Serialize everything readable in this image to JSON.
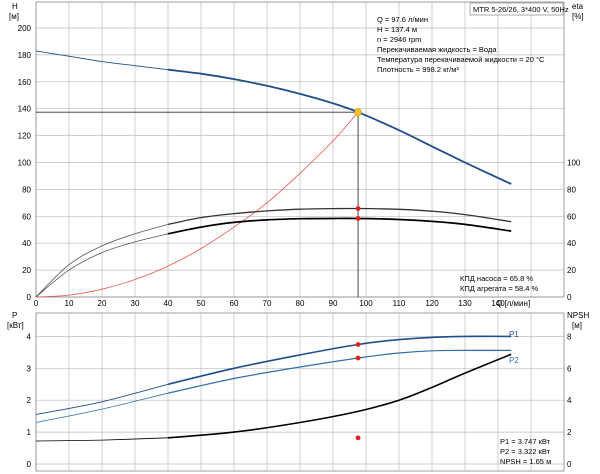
{
  "chart_data": [
    {
      "type": "line",
      "panel": "top",
      "y_left_label_1": "H",
      "y_left_label_2": "[м]",
      "y_right_label_1": "eta",
      "y_right_label_2": "[%]",
      "x_label": "Q [л/мин]",
      "header_box": "MTR 5-26/26, 3*400 V, 50Hz",
      "xlim": [
        0,
        150
      ],
      "ylim_left": [
        0,
        220
      ],
      "ylim_right_eta": [
        0,
        100
      ],
      "x_ticks": [
        "0",
        "10",
        "20",
        "30",
        "40",
        "50",
        "60",
        "70",
        "80",
        "90",
        "100",
        "110",
        "120",
        "130",
        "140"
      ],
      "y_left_ticks": [
        "0",
        "20",
        "40",
        "60",
        "80",
        "100",
        "120",
        "140",
        "160",
        "180",
        "200"
      ],
      "y_right_ticks": [
        "0",
        "20",
        "40",
        "60",
        "80",
        "100"
      ],
      "grid": true,
      "info_lines": [
        "Q = 97.6 л/мин",
        "H = 137.4 м",
        "n = 2946 rpm",
        "Перекачиваемая жидкость = Вода",
        "Температура перекачиваемой жидкости = 20 °C",
        "Плотность = 998.2 кг/м³"
      ],
      "efficiency_lines": [
        "КПД насоса = 65.8 %",
        "КПД агрегата = 58.4 %"
      ],
      "duty_point": {
        "q": 97.6,
        "h": 137.4
      },
      "series": [
        {
          "key": "H",
          "color": "#1f4e8c",
          "x": [
            0,
            10,
            20,
            30,
            40,
            50,
            60,
            70,
            80,
            90,
            97.6,
            110,
            120,
            130,
            144
          ],
          "y": [
            183,
            179,
            175,
            172,
            169,
            166,
            162,
            157,
            151,
            144,
            137.4,
            124,
            112,
            100,
            84
          ]
        },
        {
          "key": "eta_pump",
          "color": "#333333",
          "x": [
            0,
            10,
            20,
            30,
            40,
            50,
            60,
            70,
            80,
            90,
            97.6,
            110,
            120,
            130,
            144
          ],
          "y": [
            0,
            24,
            38,
            47,
            54,
            59,
            62,
            64,
            65.3,
            65.7,
            65.8,
            65.2,
            63.8,
            61.3,
            56
          ]
        },
        {
          "key": "eta_total",
          "color": "#000000",
          "x": [
            0,
            10,
            20,
            30,
            40,
            50,
            60,
            70,
            80,
            90,
            97.6,
            110,
            120,
            130,
            144
          ],
          "y": [
            0,
            20,
            33,
            41,
            47,
            52,
            55.5,
            57.3,
            58.2,
            58.4,
            58.4,
            57.6,
            56.2,
            54,
            49
          ]
        },
        {
          "key": "system",
          "color": "#e8554e",
          "x": [
            0,
            10,
            20,
            30,
            40,
            50,
            60,
            70,
            80,
            90,
            97.6
          ],
          "y": [
            0,
            1.4,
            5.8,
            13,
            23,
            36,
            52,
            70,
            92,
            116,
            137.4
          ]
        }
      ]
    },
    {
      "type": "line",
      "panel": "bottom",
      "y_left_label_1": "P",
      "y_left_label_2": "[кВт]",
      "y_right_label_1": "NPSH",
      "y_right_label_2": "[м]",
      "xlim": [
        0,
        150
      ],
      "ylim_left": [
        0,
        5
      ],
      "ylim_right": [
        0,
        10
      ],
      "y_left_ticks": [
        "0",
        "1",
        "2",
        "3",
        "4"
      ],
      "y_right_ticks": [
        "0",
        "2",
        "4",
        "6",
        "8"
      ],
      "grid": true,
      "values_lines": [
        "P1 = 3.747 кВт",
        "P2 = 3.322 кВт",
        "NPSH = 1.65 м"
      ],
      "series": [
        {
          "name": "P1",
          "color": "#1f4e8c",
          "x": [
            0,
            20,
            40,
            60,
            80,
            97.6,
            110,
            120,
            130,
            144
          ],
          "y": [
            1.55,
            1.95,
            2.5,
            3.0,
            3.42,
            3.747,
            3.9,
            3.97,
            4.0,
            4.0
          ]
        },
        {
          "name": "P2",
          "color": "#2f6fa8",
          "x": [
            0,
            20,
            40,
            60,
            80,
            97.6,
            110,
            120,
            130,
            144
          ],
          "y": [
            1.3,
            1.72,
            2.22,
            2.68,
            3.04,
            3.322,
            3.48,
            3.55,
            3.56,
            3.56
          ]
        },
        {
          "key": "NPSH",
          "color": "#000000",
          "x": [
            0,
            20,
            40,
            60,
            80,
            97.6,
            110,
            120,
            130,
            144
          ],
          "y": [
            0.72,
            0.75,
            0.82,
            1.0,
            1.3,
            1.65,
            2.0,
            2.4,
            2.85,
            3.44
          ]
        }
      ]
    }
  ]
}
